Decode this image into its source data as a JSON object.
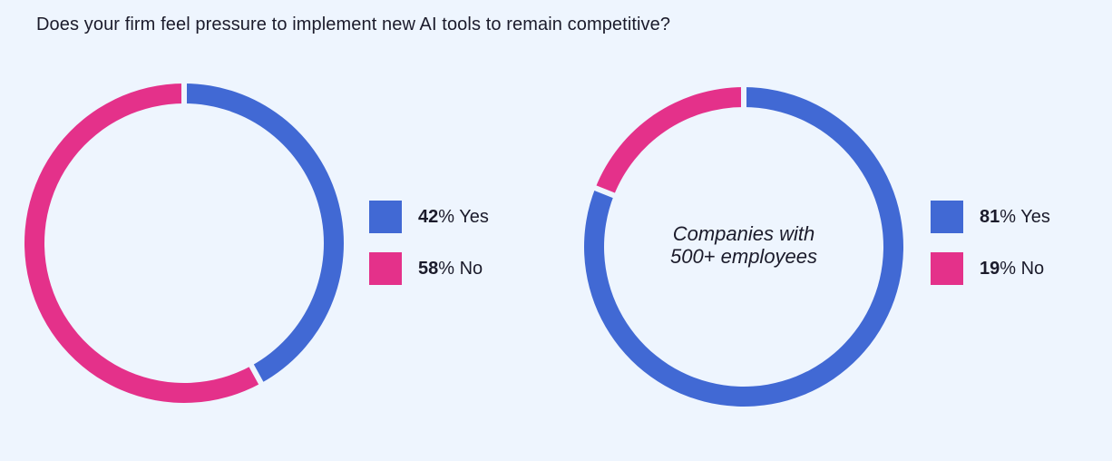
{
  "title": "Does your firm feel pressure to implement new AI tools to remain competitive?",
  "colors": {
    "background": "#eef5fe",
    "yes": "#4169d4",
    "no": "#e4318a"
  },
  "chart_data": [
    {
      "type": "pie",
      "variant": "donut",
      "center_label": "",
      "slices": [
        {
          "name": "Yes",
          "value": 42,
          "color": "#4169d4"
        },
        {
          "name": "No",
          "value": 58,
          "color": "#e4318a"
        }
      ],
      "legend": [
        {
          "value": "42",
          "unit": "%",
          "label": "Yes"
        },
        {
          "value": "58",
          "unit": "%",
          "label": "No"
        }
      ],
      "legend_position": "right"
    },
    {
      "type": "pie",
      "variant": "donut",
      "center_label": [
        "Companies with",
        "500+ employees"
      ],
      "slices": [
        {
          "name": "Yes",
          "value": 81,
          "color": "#4169d4"
        },
        {
          "name": "No",
          "value": 19,
          "color": "#e4318a"
        }
      ],
      "legend": [
        {
          "value": "81",
          "unit": "%",
          "label": "Yes"
        },
        {
          "value": "19",
          "unit": "%",
          "label": "No"
        }
      ],
      "legend_position": "right"
    }
  ]
}
